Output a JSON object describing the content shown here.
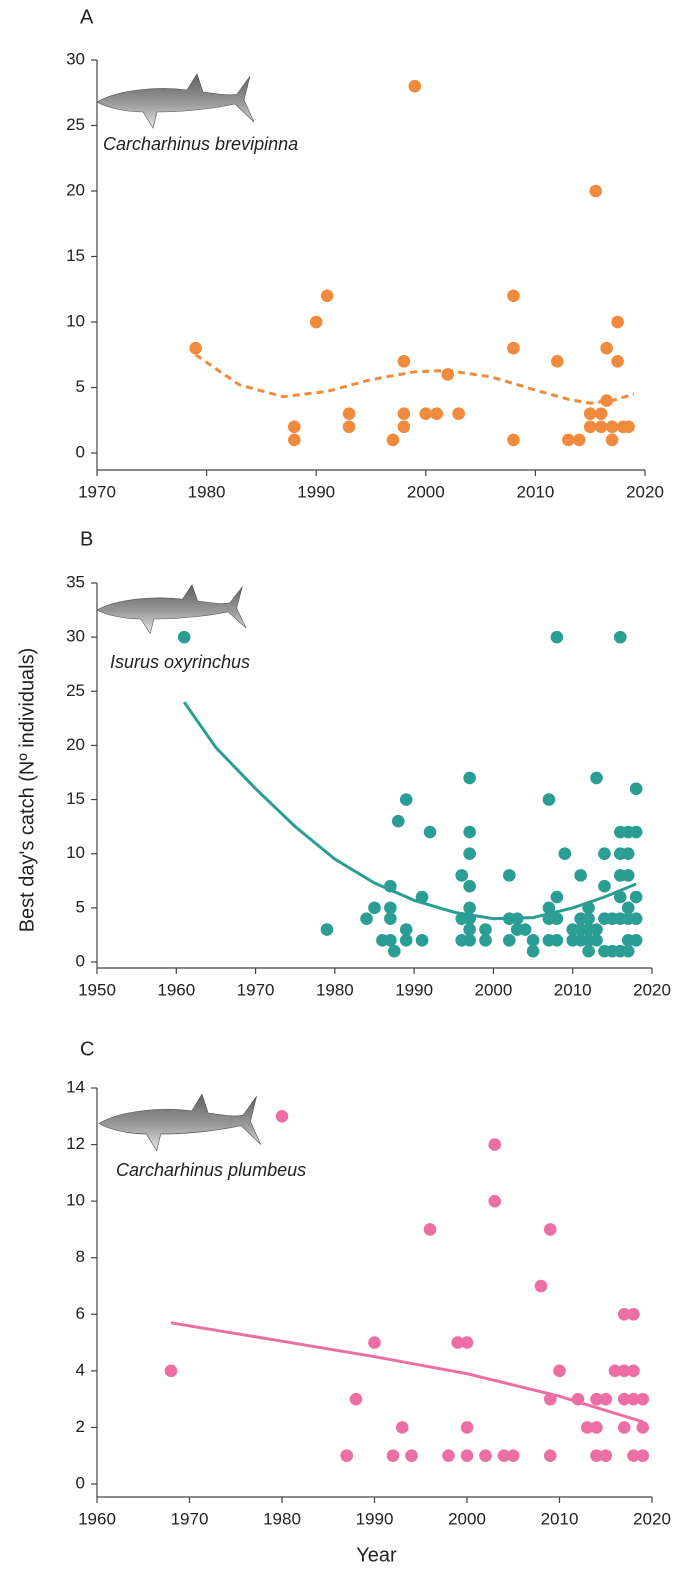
{
  "chart_data": [
    {
      "type": "scatter",
      "label": "A",
      "annotation": "Carcharhinus brevipinna",
      "xlim": [
        1970,
        2020
      ],
      "xticks": [
        1970,
        1980,
        1990,
        2000,
        2010,
        2020
      ],
      "ylim": [
        0,
        30
      ],
      "yticks": [
        0,
        5,
        10,
        15,
        20,
        25,
        30
      ],
      "series": [
        {
          "type": "scatter",
          "color": "#f08a3c",
          "x": [
            1979,
            1988,
            1988,
            1990,
            1991,
            1993,
            1993,
            1997,
            1998,
            1998,
            1998,
            1999,
            2000,
            2001,
            2002,
            2003,
            2008,
            2008,
            2008,
            2012,
            2013,
            2014,
            2015,
            2015,
            2015.5,
            2016,
            2016,
            2016.5,
            2016.5,
            2017,
            2017,
            2017.5,
            2017.5,
            2018,
            2018.5
          ],
          "values": [
            8,
            2,
            1,
            10,
            12,
            3,
            2,
            1,
            7,
            3,
            2,
            28,
            3,
            3,
            6,
            3,
            12,
            8,
            1,
            7,
            1,
            1,
            3,
            2,
            20,
            3,
            2,
            8,
            4,
            2,
            1,
            10,
            7,
            2,
            2
          ]
        },
        {
          "type": "line",
          "color": "#f08a3c",
          "dash": true,
          "x": [
            1979,
            1983,
            1987,
            1991,
            1995,
            1999,
            2002,
            2006,
            2010,
            2013,
            2015,
            2017,
            2019
          ],
          "values": [
            7.5,
            5.2,
            4.3,
            4.7,
            5.6,
            6.2,
            6.3,
            5.8,
            4.8,
            4.1,
            3.8,
            4.0,
            4.5
          ]
        }
      ]
    },
    {
      "type": "scatter",
      "label": "B",
      "annotation": "Isurus oxyrinchus",
      "y_label": "Best day's catch (Nº individuals)",
      "xlim": [
        1950,
        2020
      ],
      "xticks": [
        1950,
        1960,
        1970,
        1980,
        1990,
        2000,
        2010,
        2020
      ],
      "ylim": [
        0,
        35
      ],
      "yticks": [
        0,
        5,
        10,
        15,
        20,
        25,
        30,
        35
      ],
      "series": [
        {
          "type": "scatter",
          "color": "#2a9d94",
          "x": [
            1961,
            1979,
            1984,
            1985,
            1986,
            1987,
            1987,
            1987,
            1987,
            1987.5,
            1988,
            1989,
            1989,
            1989,
            1991,
            1991,
            1992,
            1996,
            1996,
            1996,
            1997,
            1997,
            1997,
            1997,
            1997,
            1997,
            1997,
            1997,
            1999,
            1999,
            2002,
            2002,
            2002,
            2003,
            2003,
            2004,
            2005,
            2005,
            2007,
            2007,
            2007,
            2007,
            2008,
            2008,
            2008,
            2008,
            2009,
            2010,
            2010,
            2011,
            2011,
            2011,
            2011,
            2012,
            2012,
            2012,
            2012,
            2012,
            2013,
            2013,
            2013,
            2014,
            2014,
            2014,
            2014,
            2015,
            2015,
            2016,
            2016,
            2016,
            2016,
            2016,
            2016,
            2016,
            2017,
            2017,
            2017,
            2017,
            2017,
            2017,
            2017,
            2018,
            2018,
            2018,
            2018,
            2018
          ],
          "values": [
            30,
            3,
            4,
            5,
            2,
            7,
            5,
            4,
            2,
            1,
            13,
            15,
            3,
            2,
            6,
            2,
            12,
            8,
            4,
            2,
            17,
            12,
            10,
            7,
            5,
            4,
            3,
            2,
            3,
            2,
            8,
            4,
            2,
            4,
            3,
            3,
            2,
            1,
            15,
            5,
            4,
            2,
            30,
            6,
            4,
            2,
            10,
            3,
            2,
            8,
            4,
            3,
            2,
            5,
            4,
            3,
            2,
            1,
            17,
            3,
            2,
            10,
            7,
            4,
            1,
            4,
            1,
            30,
            12,
            10,
            8,
            6,
            4,
            1,
            12,
            10,
            8,
            5,
            4,
            2,
            1,
            16,
            12,
            6,
            4,
            2
          ]
        },
        {
          "type": "line",
          "color": "#2a9d94",
          "dash": false,
          "x": [
            1961,
            1965,
            1970,
            1975,
            1980,
            1985,
            1990,
            1995,
            2000,
            2005,
            2010,
            2014,
            2018
          ],
          "values": [
            24,
            19.8,
            16,
            12.5,
            9.5,
            7.3,
            5.7,
            4.6,
            4.0,
            4.1,
            5.0,
            6.0,
            7.2
          ]
        }
      ]
    },
    {
      "type": "scatter",
      "label": "C",
      "annotation": "Carcharhinus plumbeus",
      "x_label": "Year",
      "xlim": [
        1960,
        2020
      ],
      "xticks": [
        1960,
        1970,
        1980,
        1990,
        2000,
        2010,
        2020
      ],
      "ylim": [
        0,
        14
      ],
      "yticks": [
        0,
        2,
        4,
        6,
        8,
        10,
        12,
        14
      ],
      "series": [
        {
          "type": "scatter",
          "color": "#ec6fa4",
          "x": [
            1968,
            1980,
            1987,
            1988,
            1990,
            1992,
            1993,
            1994,
            1996,
            1998,
            1999,
            2000,
            2000,
            2000,
            2002,
            2003,
            2003,
            2004,
            2005,
            2008,
            2009,
            2009,
            2009,
            2010,
            2012,
            2013,
            2014,
            2014,
            2014,
            2015,
            2015,
            2016,
            2017,
            2017,
            2017,
            2017,
            2018,
            2018,
            2018,
            2018,
            2019,
            2019,
            2019
          ],
          "values": [
            4,
            13,
            1,
            3,
            5,
            1,
            2,
            1,
            9,
            1,
            5,
            5,
            2,
            1,
            1,
            12,
            10,
            1,
            1,
            7,
            9,
            3,
            1,
            4,
            3,
            2,
            3,
            2,
            1,
            3,
            1,
            4,
            6,
            4,
            3,
            2,
            6,
            4,
            3,
            1,
            3,
            2,
            1
          ]
        },
        {
          "type": "line",
          "color": "#ec6fa4",
          "dash": false,
          "x": [
            1968,
            1980,
            1990,
            2000,
            2010,
            2019
          ],
          "values": [
            5.7,
            5.05,
            4.5,
            3.9,
            3.1,
            2.2
          ]
        }
      ]
    }
  ]
}
